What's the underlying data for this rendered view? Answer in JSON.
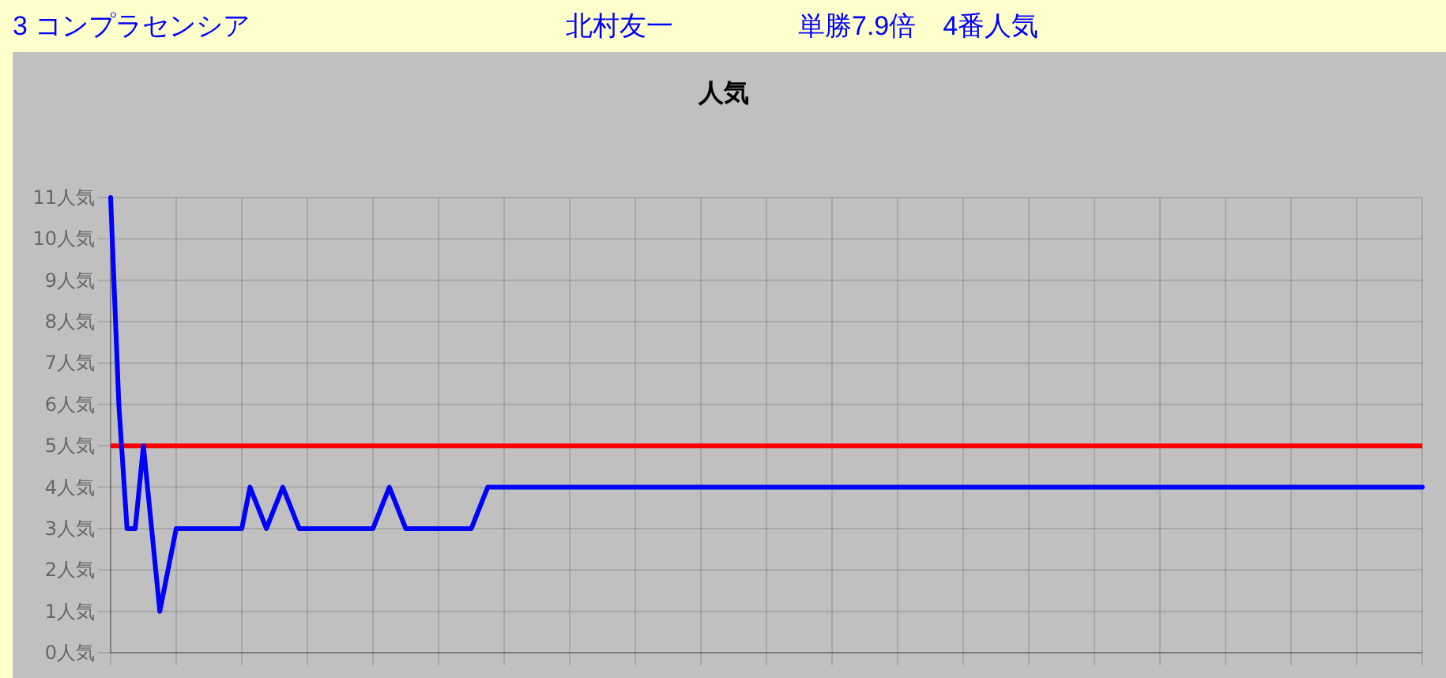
{
  "chart_data": {
    "type": "line",
    "title": "人気",
    "annotations": [
      "3 コンプラセンシア",
      "北村友一",
      "単勝7.9倍　4番人気"
    ],
    "categories": [
      null,
      null,
      null,
      null,
      null,
      null,
      null,
      null,
      null,
      null,
      null,
      null,
      null,
      null,
      null,
      null,
      null,
      null,
      null,
      null,
      null,
      null,
      null,
      null,
      null,
      null,
      null,
      null,
      null,
      null,
      null,
      null,
      null,
      null,
      null,
      null,
      null,
      null,
      null,
      null,
      null,
      null,
      null,
      null,
      null,
      null,
      null,
      null,
      null,
      null,
      null,
      null,
      null,
      null,
      null,
      null,
      null,
      null,
      null,
      null,
      null,
      null,
      null,
      null,
      null,
      null,
      null,
      null,
      null,
      null,
      null,
      null,
      null,
      null,
      null,
      null,
      null,
      null,
      null,
      null,
      null,
      null,
      null,
      null,
      null,
      null,
      null,
      null,
      null,
      null,
      null,
      null,
      null,
      null,
      null,
      null,
      null,
      null,
      null,
      null,
      null,
      null,
      null,
      null,
      null,
      null,
      null,
      null,
      null,
      null,
      null,
      null,
      null,
      null,
      null,
      null,
      null,
      null,
      null,
      null,
      null,
      null,
      null,
      null,
      null,
      null,
      null,
      null,
      null,
      null,
      null,
      null,
      null,
      null,
      null,
      null,
      null,
      null,
      null,
      null,
      null,
      null,
      null,
      null,
      null,
      null,
      null,
      null,
      null,
      null,
      null,
      null,
      null,
      null,
      null,
      null,
      null,
      null,
      null,
      null,
      null
    ],
    "ylim": [
      0,
      11
    ],
    "yticks": [
      {
        "value": 0,
        "label": "0人気"
      },
      {
        "value": 1,
        "label": "1人気"
      },
      {
        "value": 2,
        "label": "2人気"
      },
      {
        "value": 3,
        "label": "3人気"
      },
      {
        "value": 4,
        "label": "4人気"
      },
      {
        "value": 5,
        "label": "5人気"
      },
      {
        "value": 6,
        "label": "6人気"
      },
      {
        "value": 7,
        "label": "7人気"
      },
      {
        "value": 8,
        "label": "8人気"
      },
      {
        "value": 9,
        "label": "9人気"
      },
      {
        "value": 10,
        "label": "10人気"
      },
      {
        "value": 11,
        "label": "11人気"
      }
    ],
    "grid": true,
    "marker": "none",
    "line_style": "solid",
    "ref_lines": [
      {
        "axis": "y",
        "value": 5,
        "color": "#ff0000"
      }
    ],
    "series": [
      {
        "color": "#0000ff",
        "values": [
          11,
          6,
          3,
          3,
          5,
          3,
          1,
          2,
          3,
          3,
          3,
          3,
          3,
          3,
          3,
          3,
          3,
          4,
          3.5,
          3,
          3.5,
          4,
          3.5,
          3,
          3,
          3,
          3,
          3,
          3,
          3,
          3,
          3,
          3,
          3.5,
          4,
          3.5,
          3,
          3,
          3,
          3,
          3,
          3,
          3,
          3,
          3,
          3.5,
          4,
          4,
          4,
          4,
          4,
          4,
          4,
          4,
          4,
          4,
          4,
          4,
          4,
          4,
          4,
          4,
          4,
          4,
          4,
          4,
          4,
          4,
          4,
          4,
          4,
          4,
          4,
          4,
          4,
          4,
          4,
          4,
          4,
          4,
          4,
          4,
          4,
          4,
          4,
          4,
          4,
          4,
          4,
          4,
          4,
          4,
          4,
          4,
          4,
          4,
          4,
          4,
          4,
          4,
          4,
          4,
          4,
          4,
          4,
          4,
          4,
          4,
          4,
          4,
          4,
          4,
          4,
          4,
          4,
          4,
          4,
          4,
          4,
          4,
          4,
          4,
          4,
          4,
          4,
          4,
          4,
          4,
          4,
          4,
          4,
          4,
          4,
          4,
          4,
          4,
          4,
          4,
          4,
          4,
          4,
          4,
          4,
          4,
          4,
          4,
          4,
          4,
          4,
          4,
          4,
          4,
          4,
          4,
          4,
          4,
          4,
          4,
          4,
          4,
          4
        ]
      }
    ]
  }
}
